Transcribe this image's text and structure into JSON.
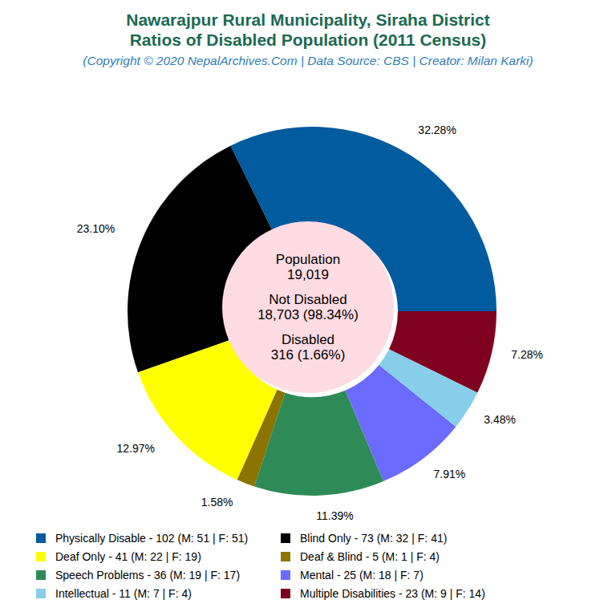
{
  "chart_data": {
    "type": "pie",
    "title": [
      "Nawarajpur Rural Municipality, Siraha District",
      "Ratios of Disabled Population (2011 Census)"
    ],
    "subtitle": "(Copyright © 2020 NepalArchives.Com | Data Source: CBS | Creator: Milan Karki)",
    "categories": [
      "Physically Disable - 102 (M: 51 | F: 51)",
      "Blind Only - 73 (M: 32 | F: 41)",
      "Deaf Only - 41 (M: 22 | F: 19)",
      "Deaf & Blind - 5 (M: 1 | F: 4)",
      "Speech Problems - 36 (M: 19 | F: 17)",
      "Mental - 25 (M: 18 | F: 7)",
      "Intellectual - 11 (M: 7 | F: 4)",
      "Multiple Disabilities - 23 (M: 9 | F: 14)"
    ],
    "values": [
      32.28,
      23.1,
      12.97,
      1.58,
      11.39,
      7.91,
      3.48,
      7.28
    ],
    "value_labels": [
      "32.28%",
      "23.10%",
      "12.97%",
      "1.58%",
      "11.39%",
      "7.91%",
      "3.48%",
      "7.28%"
    ],
    "colors": [
      "#005b9f",
      "#000000",
      "#ffff00",
      "#8b7500",
      "#2e8b57",
      "#6b6bff",
      "#87ceeb",
      "#800020"
    ],
    "data_labels": true,
    "center_text": [
      "Population",
      "19,019",
      "Not Disabled",
      "18,703 (98.34%)",
      "Disabled",
      "316 (1.66%)"
    ]
  }
}
